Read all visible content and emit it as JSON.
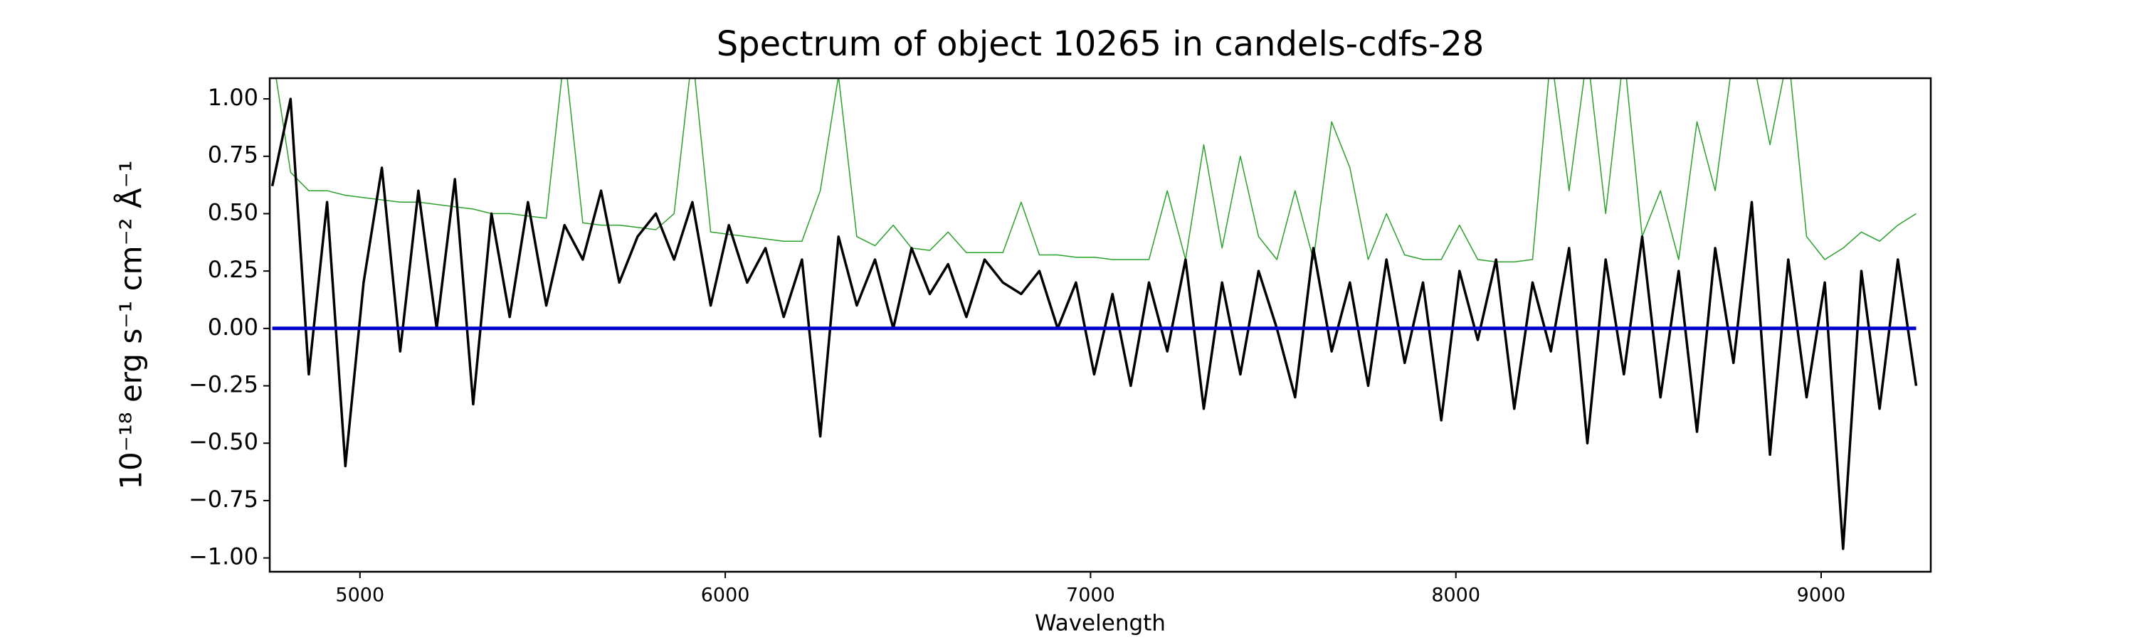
{
  "chart_data": {
    "type": "line",
    "title": "Spectrum of object 10265 in candels-cdfs-28",
    "x_label": "Wavelength",
    "y_label": "10⁻¹⁸ erg s⁻¹ cm⁻² Å⁻¹",
    "xlim": [
      4753,
      9300
    ],
    "ylim": [
      -1.06,
      1.09
    ],
    "xticks": [
      5000,
      6000,
      7000,
      8000,
      9000
    ],
    "yticks": [
      {
        "value": -1.0,
        "label": "−1.00"
      },
      {
        "value": -0.75,
        "label": "−0.75"
      },
      {
        "value": -0.5,
        "label": "−0.50"
      },
      {
        "value": -0.25,
        "label": "−0.25"
      },
      {
        "value": 0,
        "label": "0.00"
      },
      {
        "value": 0.25,
        "label": "0.25"
      },
      {
        "value": 0.5,
        "label": "0.50"
      },
      {
        "value": 0.75,
        "label": "0.75"
      },
      {
        "value": 1.0,
        "label": "1.00"
      }
    ],
    "x": [
      4760,
      4810,
      4860,
      4910,
      4960,
      5010,
      5060,
      5110,
      5160,
      5210,
      5260,
      5310,
      5360,
      5410,
      5460,
      5510,
      5560,
      5610,
      5660,
      5710,
      5760,
      5810,
      5860,
      5910,
      5960,
      6010,
      6060,
      6110,
      6160,
      6210,
      6260,
      6310,
      6360,
      6410,
      6460,
      6510,
      6560,
      6610,
      6660,
      6710,
      6760,
      6810,
      6860,
      6910,
      6960,
      7010,
      7060,
      7110,
      7160,
      7210,
      7260,
      7310,
      7360,
      7410,
      7460,
      7510,
      7560,
      7610,
      7660,
      7710,
      7760,
      7810,
      7860,
      7910,
      7960,
      8010,
      8060,
      8110,
      8160,
      8210,
      8260,
      8310,
      8360,
      8410,
      8460,
      8510,
      8560,
      8610,
      8660,
      8710,
      8760,
      8810,
      8860,
      8910,
      8960,
      9010,
      9060,
      9110,
      9160,
      9210,
      9260
    ],
    "series": [
      {
        "color": "#2ca02c",
        "values": [
          1.2,
          0.68,
          0.6,
          0.6,
          0.58,
          0.57,
          0.56,
          0.55,
          0.55,
          0.54,
          0.53,
          0.52,
          0.5,
          0.5,
          0.49,
          0.48,
          1.2,
          0.46,
          0.45,
          0.45,
          0.44,
          0.43,
          0.5,
          1.2,
          0.42,
          0.41,
          0.4,
          0.39,
          0.38,
          0.38,
          0.6,
          1.1,
          0.4,
          0.36,
          0.45,
          0.35,
          0.34,
          0.42,
          0.33,
          0.33,
          0.33,
          0.55,
          0.32,
          0.32,
          0.31,
          0.31,
          0.3,
          0.3,
          0.3,
          0.6,
          0.3,
          0.8,
          0.35,
          0.75,
          0.4,
          0.3,
          0.6,
          0.3,
          0.9,
          0.7,
          0.3,
          0.5,
          0.32,
          0.3,
          0.3,
          0.45,
          0.3,
          0.29,
          0.29,
          0.3,
          1.2,
          0.6,
          1.2,
          0.5,
          1.2,
          0.4,
          0.6,
          0.3,
          0.9,
          0.6,
          1.2,
          1.2,
          0.8,
          1.2,
          0.4,
          0.3,
          0.35,
          0.42,
          0.38,
          0.45,
          0.5
        ]
      },
      {
        "color": "#000000",
        "values": [
          0.62,
          1.0,
          -0.2,
          0.55,
          -0.6,
          0.2,
          0.7,
          -0.1,
          0.6,
          0.0,
          0.65,
          -0.33,
          0.5,
          0.05,
          0.55,
          0.1,
          0.45,
          0.3,
          0.6,
          0.2,
          0.4,
          0.5,
          0.3,
          0.55,
          0.1,
          0.45,
          0.2,
          0.35,
          0.05,
          0.3,
          -0.47,
          0.4,
          0.1,
          0.3,
          0.0,
          0.35,
          0.15,
          0.28,
          0.05,
          0.3,
          0.2,
          0.15,
          0.25,
          0.0,
          0.2,
          -0.2,
          0.15,
          -0.25,
          0.2,
          -0.1,
          0.3,
          -0.35,
          0.2,
          -0.2,
          0.25,
          0.0,
          -0.3,
          0.35,
          -0.1,
          0.2,
          -0.25,
          0.3,
          -0.15,
          0.2,
          -0.4,
          0.25,
          -0.05,
          0.3,
          -0.35,
          0.2,
          -0.1,
          0.35,
          -0.5,
          0.3,
          -0.2,
          0.4,
          -0.3,
          0.25,
          -0.45,
          0.35,
          -0.15,
          0.55,
          -0.55,
          0.3,
          -0.3,
          0.2,
          -0.96,
          0.25,
          -0.35,
          0.3,
          -0.25
        ]
      },
      {
        "color": "#0000cc",
        "x": [
          4760,
          9260
        ],
        "values": [
          0,
          0
        ]
      }
    ]
  }
}
